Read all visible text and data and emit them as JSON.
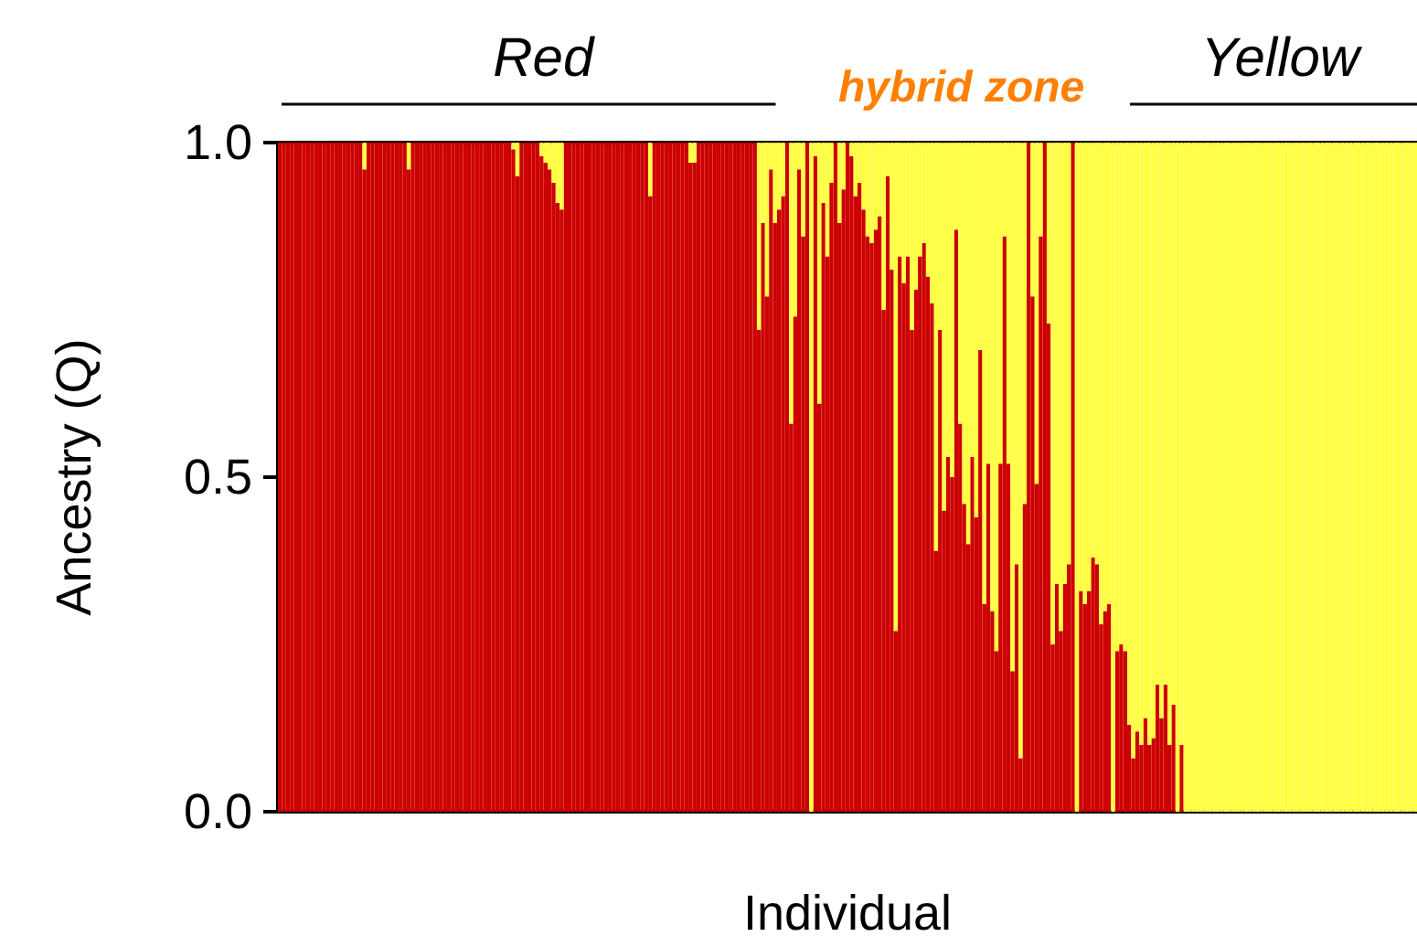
{
  "chart_data": {
    "type": "bar",
    "stacked": true,
    "xlabel": "Individual",
    "ylabel": "Ancestry (Q)",
    "annotations": [
      "Red",
      "hybrid zone",
      "Yellow"
    ],
    "ylim": [
      0,
      1
    ],
    "yticks": [
      {
        "value": 0,
        "label": "0.0"
      },
      {
        "value": 0.5,
        "label": "0.5"
      },
      {
        "value": 1,
        "label": "1.0"
      }
    ],
    "tick_labels": "y",
    "categories": [
      null,
      null,
      null,
      null,
      null,
      null,
      null,
      null,
      null,
      null,
      null,
      null,
      null,
      null,
      null,
      null,
      null,
      null,
      null,
      null,
      null,
      null,
      null,
      null,
      null,
      null,
      null,
      null,
      null,
      null,
      null,
      null,
      null,
      null,
      null,
      null,
      null,
      null,
      null,
      null,
      null,
      null,
      null,
      null,
      null,
      null,
      null,
      null,
      null,
      null,
      null,
      null,
      null,
      null,
      null,
      null,
      null,
      null,
      null,
      null,
      null,
      null,
      null,
      null,
      null,
      null,
      null,
      null,
      null,
      null,
      null,
      null,
      null,
      null,
      null,
      null,
      null,
      null,
      null,
      null,
      null,
      null,
      null,
      null,
      null,
      null,
      null,
      null,
      null,
      null,
      null,
      null,
      null,
      null,
      null,
      null,
      null,
      null,
      null,
      null,
      null,
      null,
      null,
      null,
      null,
      null,
      null,
      null,
      null,
      null,
      null,
      null,
      null,
      null,
      null,
      null,
      null,
      null,
      null,
      null,
      null,
      null,
      null,
      null,
      null,
      null,
      null,
      null,
      null,
      null,
      null,
      null,
      null,
      null,
      null,
      null,
      null,
      null,
      null,
      null,
      null,
      null,
      null,
      null,
      null,
      null,
      null,
      null,
      null,
      null,
      null,
      null,
      null,
      null,
      null,
      null,
      null,
      null,
      null,
      null,
      null,
      null,
      null,
      null,
      null,
      null,
      null,
      null,
      null,
      null,
      null,
      null,
      null,
      null,
      null,
      null,
      null,
      null,
      null,
      null,
      null,
      null,
      null,
      null,
      null,
      null,
      null,
      null,
      null,
      null,
      null,
      null,
      null,
      null,
      null,
      null,
      null,
      null,
      null,
      null,
      null,
      null,
      null,
      null,
      null,
      null,
      null,
      null,
      null,
      null,
      null,
      null,
      null,
      null,
      null,
      null,
      null,
      null,
      null,
      null,
      null,
      null,
      null,
      null,
      null,
      null,
      null,
      null,
      null,
      null,
      null,
      null,
      null,
      null,
      null,
      null,
      null,
      null,
      null,
      null,
      null,
      null,
      null,
      null,
      null,
      null,
      null,
      null,
      null,
      null,
      null,
      null,
      null,
      null,
      null,
      null,
      null,
      null,
      null,
      null,
      null,
      null,
      null,
      null,
      null,
      null,
      null,
      null,
      null,
      null,
      null,
      null,
      null,
      null,
      null,
      null,
      null,
      null,
      null,
      null,
      null,
      null,
      null
    ],
    "series": [
      {
        "color": "#cc0000",
        "values": [
          1,
          1,
          1,
          1,
          1,
          1,
          1,
          1,
          1,
          1,
          1,
          1,
          1,
          1,
          1,
          1,
          1,
          1,
          1,
          1,
          1,
          0.96,
          1,
          1,
          1,
          1,
          1,
          1,
          1,
          1,
          1,
          1,
          0.96,
          1,
          1,
          1,
          1,
          1,
          1,
          1,
          1,
          1,
          1,
          1,
          1,
          1,
          1,
          1,
          1,
          1,
          1,
          1,
          1,
          1,
          1,
          1,
          1,
          1,
          0.99,
          0.95,
          1,
          1,
          1,
          1,
          1,
          0.98,
          0.97,
          0.96,
          0.94,
          0.91,
          0.9,
          1,
          1,
          1,
          1,
          1,
          1,
          1,
          1,
          1,
          1,
          1,
          1,
          1,
          1,
          1,
          1,
          1,
          1,
          1,
          1,
          1,
          0.92,
          1,
          1,
          1,
          1,
          1,
          1,
          1,
          1,
          1,
          0.97,
          0.97,
          1,
          1,
          1,
          1,
          1,
          1,
          1,
          1,
          1,
          1,
          1,
          1,
          1,
          1,
          1,
          0.72,
          0.88,
          0.77,
          0.96,
          0.88,
          0.9,
          0.92,
          1,
          0.58,
          0.74,
          0.96,
          0.86,
          1,
          0,
          0.98,
          0.61,
          0.91,
          0.83,
          0.94,
          1,
          0.88,
          0.93,
          1,
          0.98,
          0.92,
          0.94,
          0.9,
          0.86,
          0.85,
          0.87,
          0.89,
          0.75,
          0.95,
          0.81,
          0.27,
          0.83,
          0.79,
          0.83,
          0.72,
          0.78,
          0.83,
          0.85,
          0.8,
          0.76,
          0.39,
          0.72,
          0.45,
          0.53,
          0.5,
          0.87,
          0.58,
          0.46,
          0.4,
          0.53,
          0.44,
          0.69,
          0.31,
          0.52,
          0.3,
          0.24,
          0.52,
          0.86,
          0.52,
          0.21,
          0.37,
          0.08,
          0.46,
          1,
          0.77,
          0.49,
          0.86,
          1,
          0.73,
          0.25,
          0.34,
          0.27,
          0.34,
          0.37,
          1,
          0,
          0.33,
          0.31,
          0.33,
          0.38,
          0.37,
          0.28,
          0.3,
          0.31,
          0,
          0.24,
          0.25,
          0.24,
          0.13,
          0.08,
          0.12,
          0.1,
          0.14,
          0.1,
          0.11,
          0.19,
          0.14,
          0.19,
          0.1,
          0.16,
          0,
          0.1,
          0,
          0,
          0,
          0,
          0,
          0,
          0,
          0,
          0,
          0,
          0,
          0,
          0,
          0,
          0,
          0,
          0,
          0,
          0,
          0,
          0,
          0,
          0,
          0,
          0,
          0,
          0,
          0,
          0,
          0,
          0,
          0,
          0,
          0,
          0,
          0,
          0,
          0,
          0,
          0,
          0,
          0,
          0,
          0,
          0,
          0,
          0,
          0,
          0,
          0,
          0,
          0,
          0,
          0,
          0,
          0,
          0,
          0
        ]
      },
      {
        "color": "#ffff44",
        "values": [
          0,
          0,
          0,
          0,
          0,
          0,
          0,
          0,
          0,
          0,
          0,
          0,
          0,
          0,
          0,
          0,
          0,
          0,
          0,
          0,
          0,
          0.04,
          0,
          0,
          0,
          0,
          0,
          0,
          0,
          0,
          0,
          0,
          0.04,
          0,
          0,
          0,
          0,
          0,
          0,
          0,
          0,
          0,
          0,
          0,
          0,
          0,
          0,
          0,
          0,
          0,
          0,
          0,
          0,
          0,
          0,
          0,
          0,
          0,
          0.01,
          0.05,
          0,
          0,
          0,
          0,
          0,
          0.02,
          0.03,
          0.04,
          0.06,
          0.09,
          0.1,
          0,
          0,
          0,
          0,
          0,
          0,
          0,
          0,
          0,
          0,
          0,
          0,
          0,
          0,
          0,
          0,
          0,
          0,
          0,
          0,
          0,
          0.08,
          0,
          0,
          0,
          0,
          0,
          0,
          0,
          0,
          0,
          0.03,
          0.03,
          0,
          0,
          0,
          0,
          0,
          0,
          0,
          0,
          0,
          0,
          0,
          0,
          0,
          0,
          0,
          0.28,
          0.12,
          0.23,
          0.04,
          0.12,
          0.1,
          0.08,
          0,
          0.42,
          0.26,
          0.04,
          0.14,
          0,
          1,
          0.02,
          0.39,
          0.09,
          0.17,
          0.06,
          0,
          0.12,
          0.07,
          0,
          0.02,
          0.08,
          0.06,
          0.1,
          0.14,
          0.15,
          0.13,
          0.11,
          0.25,
          0.05,
          0.19,
          0.73,
          0.17,
          0.21,
          0.17,
          0.28,
          0.22,
          0.17,
          0.15,
          0.2,
          0.24,
          0.61,
          0.28,
          0.55,
          0.47,
          0.5,
          0.13,
          0.42,
          0.54,
          0.6,
          0.47,
          0.56,
          0.31,
          0.69,
          0.48,
          0.7,
          0.76,
          0.48,
          0.14,
          0.48,
          0.79,
          0.63,
          0.92,
          0.54,
          0,
          0.23,
          0.51,
          0.14,
          0,
          0.27,
          0.75,
          0.66,
          0.73,
          0.66,
          0.63,
          0,
          1,
          0.67,
          0.69,
          0.67,
          0.62,
          0.63,
          0.72,
          0.7,
          0.69,
          1,
          0.76,
          0.75,
          0.76,
          0.87,
          0.92,
          0.88,
          0.9,
          0.86,
          0.9,
          0.89,
          0.81,
          0.86,
          0.81,
          0.9,
          0.84,
          1,
          0.9,
          1,
          1,
          1,
          1,
          1,
          1,
          1,
          1,
          1,
          1,
          1,
          1,
          1,
          1,
          1,
          1,
          1,
          1,
          1,
          1,
          1,
          1,
          1,
          1,
          1,
          1,
          1,
          1,
          1,
          1,
          1,
          1,
          1,
          1,
          1,
          1,
          1,
          1,
          1,
          1,
          1,
          1,
          1,
          1,
          1,
          1,
          1,
          1,
          1,
          1,
          1,
          1,
          1,
          1,
          1,
          1,
          1,
          1
        ]
      }
    ]
  }
}
